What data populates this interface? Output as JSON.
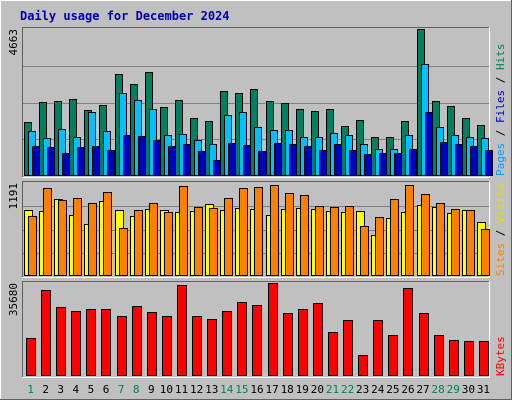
{
  "chart_data": {
    "type": "bar",
    "title": "Daily usage for December 2024",
    "x": [
      1,
      2,
      3,
      4,
      5,
      6,
      7,
      8,
      9,
      10,
      11,
      12,
      13,
      14,
      15,
      16,
      17,
      18,
      19,
      20,
      21,
      22,
      23,
      24,
      25,
      26,
      27,
      28,
      29,
      30,
      31
    ],
    "weekend_days": [
      1,
      7,
      8,
      14,
      15,
      21,
      22,
      28,
      29
    ],
    "panels": [
      {
        "key": "traffic",
        "ymax": 4663,
        "ymax_label": "4663",
        "right_label": [
          {
            "text": "Pages",
            "color": "#00a0ff"
          },
          {
            "text": " / ",
            "color": "#000000"
          },
          {
            "text": "Files",
            "color": "#0000c0"
          },
          {
            "text": " / ",
            "color": "#000000"
          },
          {
            "text": "Hits",
            "color": "#008060"
          }
        ],
        "series": [
          {
            "key": "hits",
            "color": "#008060",
            "values": [
              1700,
              2350,
              2380,
              2450,
              2080,
              2260,
              3220,
              2930,
              3300,
              2200,
              2420,
              1830,
              1730,
              2700,
              2630,
              2750,
              2380,
              2330,
              2140,
              2070,
              2140,
              1580,
              1770,
              1230,
              1230,
              1730,
              4663,
              2380,
              2230,
              1830,
              1630
            ]
          },
          {
            "key": "files",
            "color": "#00c0ff",
            "values": [
              1420,
              1220,
              1480,
              1230,
              2040,
              1420,
              2630,
              2420,
              2120,
              1300,
              1320,
              1130,
              1010,
              1930,
              2020,
              1550,
              1450,
              1470,
              1250,
              1250,
              1350,
              1300,
              1010,
              860,
              860,
              1290,
              3550,
              1570,
              1300,
              1230,
              1220
            ]
          },
          {
            "key": "pages",
            "color": "#0000c0",
            "values": [
              950,
              920,
              720,
              930,
              940,
              820,
              1300,
              1260,
              1150,
              960,
              1010,
              780,
              520,
              1050,
              990,
              800,
              1050,
              1020,
              940,
              820,
              1000,
              830,
              690,
              730,
              730,
              860,
              2020,
              1070,
              1010,
              960,
              840
            ]
          }
        ]
      },
      {
        "key": "visits",
        "ymax": 1191,
        "ymax_label": "1191",
        "right_label": [
          {
            "text": "Sites",
            "color": "#ff8000"
          },
          {
            "text": " / ",
            "color": "#000000"
          },
          {
            "text": "Visits",
            "color": "#e0e000"
          }
        ],
        "series": [
          {
            "key": "visits",
            "color": "#ffff00",
            "values": [
              850,
              830,
              980,
              780,
              660,
              960,
              840,
              770,
              860,
              850,
              820,
              830,
              920,
              850,
              870,
              860,
              780,
              860,
              870,
              860,
              830,
              820,
              830,
              530,
              740,
              820,
              910,
              890,
              810,
              840,
              690
            ]
          },
          {
            "key": "sites",
            "color": "#ff8000",
            "values": [
              770,
              1130,
              970,
              1000,
              940,
              1070,
              620,
              840,
              940,
              820,
              1150,
              890,
              870,
              1000,
              1130,
              1140,
              1160,
              1060,
              1040,
              900,
              890,
              900,
              640,
              750,
              990,
              1160,
              1050,
              930,
              860,
              850,
              600
            ]
          }
        ]
      },
      {
        "key": "kbytes",
        "ymax": 35680,
        "ymax_label": "35680",
        "right_label": [
          {
            "text": "KBytes",
            "color": "#ff0000"
          }
        ],
        "series": [
          {
            "key": "kbytes",
            "color": "#ff0000",
            "values": [
              14500,
              32840,
              26500,
              24950,
              25630,
              25630,
              23090,
              26700,
              24510,
              22880,
              34860,
              22880,
              21780,
              24900,
              28520,
              27300,
              35680,
              24360,
              25800,
              28000,
              16790,
              21380,
              7950,
              21420,
              15620,
              33830,
              24360,
              15810,
              13810,
              13300,
              13300
            ]
          }
        ]
      }
    ]
  }
}
